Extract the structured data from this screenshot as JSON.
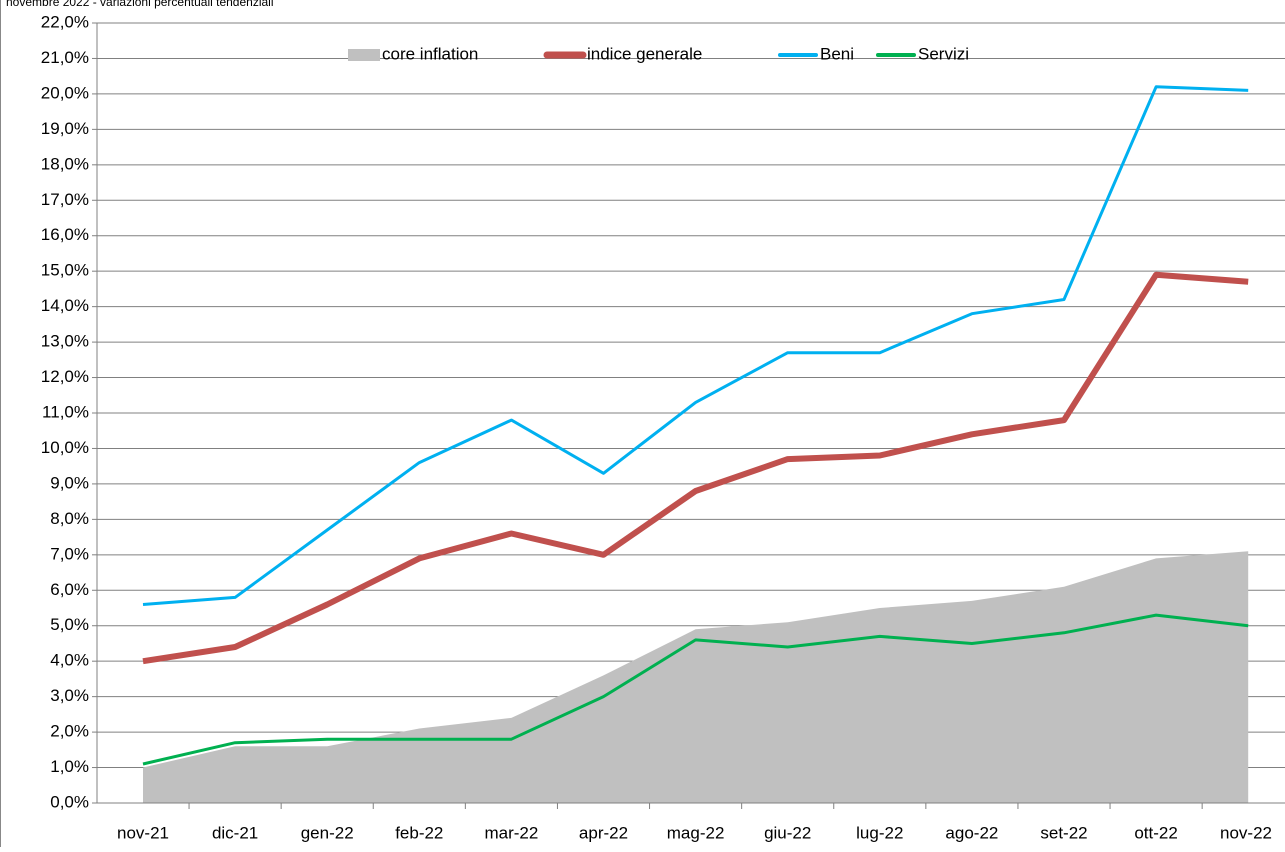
{
  "chart_data": {
    "type": "line",
    "title": "novembre 2022 - variazioni percentuali tendenziali",
    "categories": [
      "nov-21",
      "dic-21",
      "gen-22",
      "feb-22",
      "mar-22",
      "apr-22",
      "mag-22",
      "giu-22",
      "lug-22",
      "ago-22",
      "set-22",
      "ott-22",
      "nov-22"
    ],
    "series": [
      {
        "name": "core inflation",
        "kind": "area",
        "color": "#c0c0c0",
        "values": [
          1.0,
          1.6,
          1.6,
          2.1,
          2.4,
          3.6,
          4.9,
          5.1,
          5.5,
          5.7,
          6.1,
          6.9,
          7.1
        ]
      },
      {
        "name": "indice generale",
        "kind": "line",
        "color": "#c0504d",
        "width": 6,
        "values": [
          4.0,
          4.4,
          5.6,
          6.9,
          7.6,
          7.0,
          8.8,
          9.7,
          9.8,
          10.4,
          10.8,
          14.9,
          14.7
        ]
      },
      {
        "name": "Beni",
        "kind": "line",
        "color": "#00b0f0",
        "width": 3,
        "values": [
          5.6,
          5.8,
          7.7,
          9.6,
          10.8,
          9.3,
          11.3,
          12.7,
          12.7,
          13.8,
          14.2,
          20.2,
          20.1
        ]
      },
      {
        "name": "Servizi",
        "kind": "line",
        "color": "#00b050",
        "width": 3,
        "values": [
          1.1,
          1.7,
          1.8,
          1.8,
          1.8,
          3.0,
          4.6,
          4.4,
          4.7,
          4.5,
          4.8,
          5.3,
          5.0
        ]
      }
    ],
    "ylim": [
      0,
      22
    ],
    "yticks": [
      {
        "value": 0,
        "label": "0,0%"
      },
      {
        "value": 1,
        "label": "1,0%"
      },
      {
        "value": 2,
        "label": "2,0%"
      },
      {
        "value": 3,
        "label": "3,0%"
      },
      {
        "value": 4,
        "label": "4,0%"
      },
      {
        "value": 5,
        "label": "5,0%"
      },
      {
        "value": 6,
        "label": "6,0%"
      },
      {
        "value": 7,
        "label": "7,0%"
      },
      {
        "value": 8,
        "label": "8,0%"
      },
      {
        "value": 9,
        "label": "9,0%"
      },
      {
        "value": 10,
        "label": "10,0%"
      },
      {
        "value": 11,
        "label": "11,0%"
      },
      {
        "value": 12,
        "label": "12,0%"
      },
      {
        "value": 13,
        "label": "13,0%"
      },
      {
        "value": 14,
        "label": "14,0%"
      },
      {
        "value": 15,
        "label": "15,0%"
      },
      {
        "value": 16,
        "label": "16,0%"
      },
      {
        "value": 17,
        "label": "17,0%"
      },
      {
        "value": 18,
        "label": "18,0%"
      },
      {
        "value": 19,
        "label": "19,0%"
      },
      {
        "value": 20,
        "label": "20,0%"
      },
      {
        "value": 21,
        "label": "21,0%"
      },
      {
        "value": 22,
        "label": "22,0%"
      }
    ],
    "grid": true,
    "legend": "top"
  }
}
